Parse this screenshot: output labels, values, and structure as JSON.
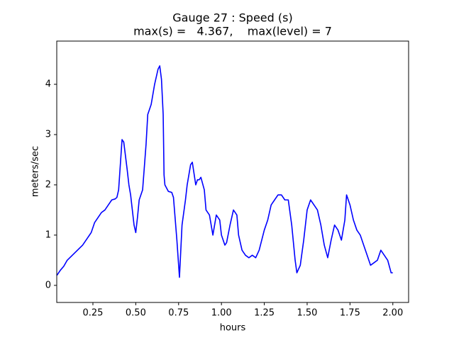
{
  "chart_data": {
    "type": "line",
    "title": "Gauge 27 : Speed (s)",
    "subtitle": "max(s) =   4.367,    max(level) = 7",
    "xlabel": "hours",
    "ylabel": "meters/sec",
    "xlim": [
      0.039,
      2.092
    ],
    "ylim": [
      -0.34,
      4.86
    ],
    "xticks": [
      0.25,
      {
        "value": 0.5,
        "label": "0.50"
      },
      0.75,
      {
        "value": 1.0,
        "label": "1.00"
      },
      1.25,
      {
        "value": 1.5,
        "label": "1.50"
      },
      1.75,
      {
        "value": 2.0,
        "label": "2.00"
      }
    ],
    "yticks": [
      0,
      1,
      2,
      3,
      4
    ],
    "grid": false,
    "series": [
      {
        "color": "#0000ff",
        "x": [
          0.04,
          0.06,
          0.08,
          0.1,
          0.13,
          0.16,
          0.19,
          0.22,
          0.24,
          0.26,
          0.28,
          0.3,
          0.32,
          0.34,
          0.36,
          0.38,
          0.39,
          0.4,
          0.42,
          0.43,
          0.45,
          0.46,
          0.47,
          0.49,
          0.5,
          0.51,
          0.52,
          0.54,
          0.56,
          0.57,
          0.59,
          0.61,
          0.63,
          0.64,
          0.65,
          0.66,
          0.665,
          0.67,
          0.69,
          0.71,
          0.72,
          0.74,
          0.755,
          0.77,
          0.79,
          0.8,
          0.82,
          0.83,
          0.85,
          0.86,
          0.87,
          0.88,
          0.9,
          0.91,
          0.93,
          0.95,
          0.97,
          0.99,
          1.0,
          1.02,
          1.03,
          1.05,
          1.07,
          1.09,
          1.1,
          1.12,
          1.14,
          1.16,
          1.18,
          1.2,
          1.22,
          1.25,
          1.27,
          1.29,
          1.31,
          1.33,
          1.35,
          1.37,
          1.39,
          1.41,
          1.43,
          1.44,
          1.46,
          1.48,
          1.5,
          1.52,
          1.54,
          1.56,
          1.58,
          1.6,
          1.62,
          1.64,
          1.66,
          1.68,
          1.7,
          1.72,
          1.73,
          1.75,
          1.77,
          1.79,
          1.81,
          1.83,
          1.85,
          1.87,
          1.89,
          1.91,
          1.93,
          1.95,
          1.97,
          1.99,
          2.0
        ],
        "values": [
          0.2,
          0.3,
          0.38,
          0.5,
          0.6,
          0.7,
          0.8,
          0.95,
          1.05,
          1.25,
          1.35,
          1.45,
          1.5,
          1.6,
          1.7,
          1.72,
          1.75,
          1.9,
          2.9,
          2.85,
          2.3,
          2.0,
          1.8,
          1.2,
          1.05,
          1.35,
          1.7,
          1.9,
          2.8,
          3.4,
          3.6,
          4.0,
          4.3,
          4.367,
          4.1,
          3.4,
          2.2,
          2.0,
          1.87,
          1.85,
          1.75,
          0.9,
          0.16,
          1.2,
          1.7,
          2.0,
          2.4,
          2.45,
          2.0,
          2.1,
          2.1,
          2.15,
          1.9,
          1.5,
          1.4,
          1.0,
          1.4,
          1.3,
          1.0,
          0.8,
          0.85,
          1.2,
          1.5,
          1.4,
          1.0,
          0.7,
          0.6,
          0.55,
          0.6,
          0.55,
          0.7,
          1.1,
          1.3,
          1.6,
          1.7,
          1.8,
          1.8,
          1.7,
          1.7,
          1.2,
          0.5,
          0.25,
          0.4,
          0.9,
          1.5,
          1.7,
          1.6,
          1.5,
          1.2,
          0.8,
          0.55,
          0.9,
          1.2,
          1.1,
          0.9,
          1.3,
          1.8,
          1.6,
          1.3,
          1.1,
          1.0,
          0.8,
          0.6,
          0.4,
          0.45,
          0.5,
          0.7,
          0.6,
          0.5,
          0.25,
          0.25
        ]
      }
    ]
  }
}
